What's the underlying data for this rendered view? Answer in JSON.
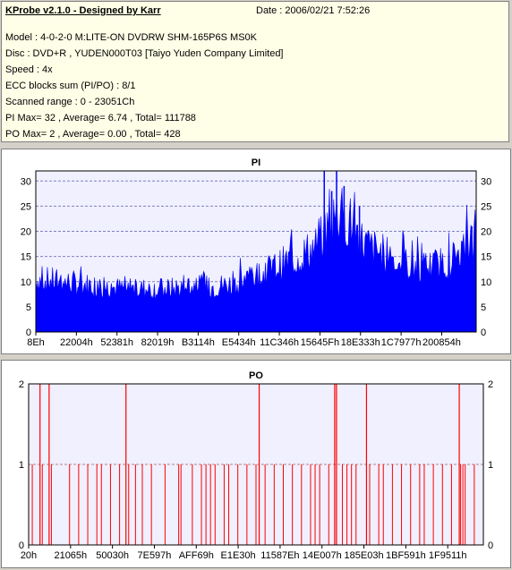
{
  "header": {
    "title": "KProbe v2.1.0 - Designed by Karr",
    "date": "Date : 2006/02/21 7:52:26"
  },
  "info_lines": [
    "Model : 4-0-2-0 M:LITE-ON DVDRW SHM-165P6S MS0K",
    "Disc : DVD+R , YUDEN000T03 [Taiyo Yuden Company Limited]",
    "Speed : 4x",
    "ECC blocks sum (PI/PO) : 8/1",
    "Scanned range : 0 - 23051Ch",
    "PI Max= 32 , Average= 6.74 , Total= 111788",
    "PO Max= 2 , Average= 0.00 , Total= 428"
  ],
  "colors": {
    "pi": "#0000ff",
    "po": "#ff0000",
    "plot_bg": "#f0f0ff",
    "grid": "#808080",
    "info_bg": "#ffffe7"
  },
  "chart_data": [
    {
      "type": "area",
      "title": "PI",
      "ylim": [
        0,
        32
      ],
      "yticks": [
        0,
        5,
        10,
        15,
        20,
        25,
        30
      ],
      "grid": true,
      "xtick_labels": [
        "8Eh",
        "22004h",
        "52381h",
        "82019h",
        "B3114h",
        "E5434h",
        "11C346h",
        "15645Fh",
        "18E333h",
        "1C7977h",
        "200854h"
      ],
      "profile": [
        [
          0,
          10.5
        ],
        [
          0.05,
          10
        ],
        [
          0.1,
          9.5
        ],
        [
          0.15,
          9
        ],
        [
          0.2,
          8.5
        ],
        [
          0.25,
          8.5
        ],
        [
          0.3,
          8.5
        ],
        [
          0.35,
          9
        ],
        [
          0.4,
          9
        ],
        [
          0.45,
          9.5
        ],
        [
          0.5,
          11
        ],
        [
          0.55,
          13
        ],
        [
          0.6,
          15
        ],
        [
          0.64,
          17
        ],
        [
          0.66,
          20
        ],
        [
          0.68,
          23
        ],
        [
          0.7,
          23
        ],
        [
          0.72,
          21
        ],
        [
          0.74,
          18
        ],
        [
          0.76,
          16.5
        ],
        [
          0.8,
          15
        ],
        [
          0.85,
          13
        ],
        [
          0.9,
          13
        ],
        [
          0.94,
          14
        ],
        [
          0.97,
          16
        ],
        [
          1.0,
          18.5
        ]
      ],
      "spikes": [
        [
          0.655,
          32
        ],
        [
          0.683,
          32
        ],
        [
          0.7,
          29
        ],
        [
          0.672,
          28
        ],
        [
          0.735,
          25
        ],
        [
          0.99,
          21
        ]
      ]
    },
    {
      "type": "bar",
      "title": "PO",
      "ylim": [
        0,
        2
      ],
      "yticks": [
        0,
        1,
        2
      ],
      "grid": true,
      "xtick_labels": [
        "20h",
        "21065h",
        "50030h",
        "7E597h",
        "AFF69h",
        "E1E30h",
        "11587Eh",
        "14E007h",
        "185E03h",
        "1BF591h",
        "1F9511h"
      ],
      "values_at_2": [
        0.025,
        0.045,
        0.214,
        0.507,
        0.673,
        0.677,
        0.743,
        0.947
      ],
      "values_at_1": [
        0.008,
        0.03,
        0.05,
        0.09,
        0.11,
        0.13,
        0.15,
        0.16,
        0.18,
        0.2,
        0.22,
        0.235,
        0.25,
        0.27,
        0.3,
        0.33,
        0.335,
        0.36,
        0.38,
        0.39,
        0.4,
        0.41,
        0.43,
        0.44,
        0.46,
        0.48,
        0.5,
        0.52,
        0.54,
        0.56,
        0.58,
        0.6,
        0.62,
        0.63,
        0.64,
        0.66,
        0.69,
        0.7,
        0.71,
        0.72,
        0.75,
        0.77,
        0.78,
        0.8,
        0.82,
        0.84,
        0.86,
        0.87,
        0.89,
        0.91,
        0.93,
        0.95,
        0.955,
        0.96,
        0.98
      ]
    }
  ]
}
